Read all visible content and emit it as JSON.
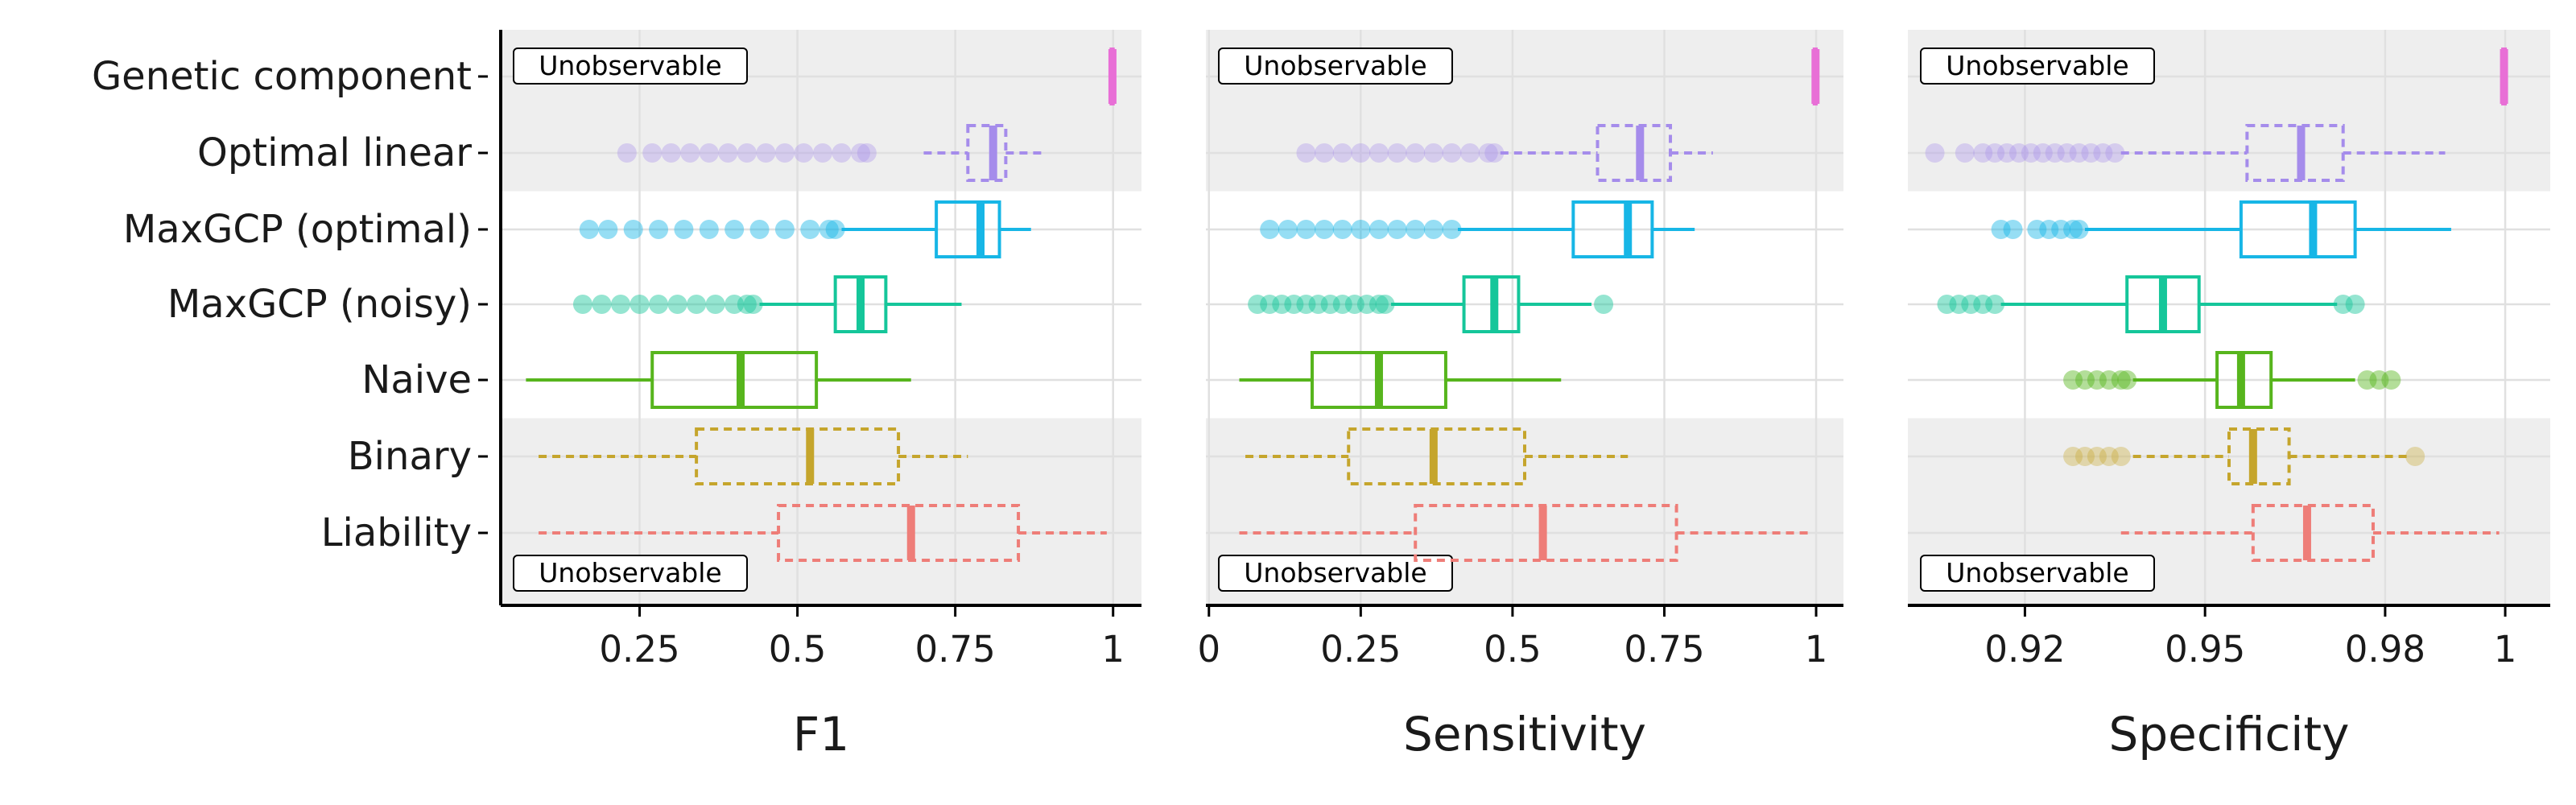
{
  "methods": [
    "Genetic component",
    "Optimal linear",
    "MaxGCP (optimal)",
    "MaxGCP (noisy)",
    "Naive",
    "Binary",
    "Liability"
  ],
  "unobservable_label": "Unobservable",
  "colors": {
    "Genetic component": "#e86fd6",
    "Optimal linear": "#a58ceb",
    "MaxGCP (optimal)": "#17b6e6",
    "MaxGCP (noisy)": "#15c69a",
    "Naive": "#57b51d",
    "Binary": "#c5a52c",
    "Liability": "#ee7d78",
    "shade": "#eeeeee",
    "grid": "#e0e0e0"
  },
  "chart_data": [
    {
      "type": "box",
      "xlabel": "F1",
      "xlim": [
        0.03,
        1.045
      ],
      "ticks": [
        0.25,
        0.5,
        0.75,
        1
      ],
      "tick_labels": [
        "0.25",
        "0.5",
        "0.75",
        "1"
      ],
      "unobservable_rows": [
        "Genetic component",
        "Optimal linear",
        "Binary",
        "Liability"
      ],
      "series": [
        {
          "name": "Genetic component",
          "whisker_low": 0.997,
          "q1": 0.997,
          "median": 0.999,
          "q3": 1.0,
          "whisker_high": 1.0,
          "outliers": []
        },
        {
          "name": "Optimal linear",
          "whisker_low": 0.7,
          "q1": 0.77,
          "median": 0.81,
          "q3": 0.83,
          "whisker_high": 0.89,
          "outliers": [
            0.23,
            0.27,
            0.3,
            0.33,
            0.36,
            0.39,
            0.42,
            0.45,
            0.48,
            0.51,
            0.54,
            0.57,
            0.6,
            0.61
          ]
        },
        {
          "name": "MaxGCP (optimal)",
          "whisker_low": 0.57,
          "q1": 0.72,
          "median": 0.79,
          "q3": 0.82,
          "whisker_high": 0.87,
          "outliers": [
            0.17,
            0.2,
            0.24,
            0.28,
            0.32,
            0.36,
            0.4,
            0.44,
            0.48,
            0.52,
            0.55,
            0.56
          ]
        },
        {
          "name": "MaxGCP (noisy)",
          "whisker_low": 0.44,
          "q1": 0.56,
          "median": 0.6,
          "q3": 0.64,
          "whisker_high": 0.76,
          "outliers": [
            0.16,
            0.19,
            0.22,
            0.25,
            0.28,
            0.31,
            0.34,
            0.37,
            0.4,
            0.42,
            0.43
          ]
        },
        {
          "name": "Naive",
          "whisker_low": 0.07,
          "q1": 0.27,
          "median": 0.41,
          "q3": 0.53,
          "whisker_high": 0.68,
          "outliers": []
        },
        {
          "name": "Binary",
          "whisker_low": 0.09,
          "q1": 0.34,
          "median": 0.52,
          "q3": 0.66,
          "whisker_high": 0.77,
          "outliers": []
        },
        {
          "name": "Liability",
          "whisker_low": 0.09,
          "q1": 0.47,
          "median": 0.68,
          "q3": 0.85,
          "whisker_high": 0.99,
          "outliers": []
        }
      ]
    },
    {
      "type": "box",
      "xlabel": "Sensitivity",
      "xlim": [
        -0.005,
        1.045
      ],
      "ticks": [
        0,
        0.25,
        0.5,
        0.75,
        1
      ],
      "tick_labels": [
        "0",
        "0.25",
        "0.5",
        "0.75",
        "1"
      ],
      "unobservable_rows": [
        "Genetic component",
        "Optimal linear",
        "Binary",
        "Liability"
      ],
      "series": [
        {
          "name": "Genetic component",
          "whisker_low": 0.997,
          "q1": 0.997,
          "median": 0.999,
          "q3": 1.0,
          "whisker_high": 1.0,
          "outliers": []
        },
        {
          "name": "Optimal linear",
          "whisker_low": 0.48,
          "q1": 0.64,
          "median": 0.71,
          "q3": 0.76,
          "whisker_high": 0.83,
          "outliers": [
            0.16,
            0.19,
            0.22,
            0.25,
            0.28,
            0.31,
            0.34,
            0.37,
            0.4,
            0.43,
            0.46,
            0.47
          ]
        },
        {
          "name": "MaxGCP (optimal)",
          "whisker_low": 0.41,
          "q1": 0.6,
          "median": 0.69,
          "q3": 0.73,
          "whisker_high": 0.8,
          "outliers": [
            0.1,
            0.13,
            0.16,
            0.19,
            0.22,
            0.25,
            0.28,
            0.31,
            0.34,
            0.37,
            0.4
          ]
        },
        {
          "name": "MaxGCP (noisy)",
          "whisker_low": 0.3,
          "q1": 0.42,
          "median": 0.47,
          "q3": 0.51,
          "whisker_high": 0.63,
          "outliers": [
            0.08,
            0.1,
            0.12,
            0.14,
            0.16,
            0.18,
            0.2,
            0.22,
            0.24,
            0.26,
            0.28,
            0.29,
            0.65
          ]
        },
        {
          "name": "Naive",
          "whisker_low": 0.05,
          "q1": 0.17,
          "median": 0.28,
          "q3": 0.39,
          "whisker_high": 0.58,
          "outliers": []
        },
        {
          "name": "Binary",
          "whisker_low": 0.06,
          "q1": 0.23,
          "median": 0.37,
          "q3": 0.52,
          "whisker_high": 0.69,
          "outliers": []
        },
        {
          "name": "Liability",
          "whisker_low": 0.05,
          "q1": 0.34,
          "median": 0.55,
          "q3": 0.77,
          "whisker_high": 0.99,
          "outliers": []
        }
      ]
    },
    {
      "type": "box",
      "xlabel": "Specificity",
      "xlim": [
        0.9005,
        1.0075
      ],
      "ticks": [
        0.92,
        0.95,
        0.98,
        1
      ],
      "tick_labels": [
        "0.92",
        "0.95",
        "0.98",
        "1"
      ],
      "unobservable_rows": [
        "Genetic component",
        "Optimal linear",
        "Binary",
        "Liability"
      ],
      "series": [
        {
          "name": "Genetic component",
          "whisker_low": 0.9996,
          "q1": 0.9996,
          "median": 0.9998,
          "q3": 1.0,
          "whisker_high": 1.0,
          "outliers": []
        },
        {
          "name": "Optimal linear",
          "whisker_low": 0.936,
          "q1": 0.957,
          "median": 0.966,
          "q3": 0.973,
          "whisker_high": 0.99,
          "outliers": [
            0.905,
            0.91,
            0.913,
            0.915,
            0.917,
            0.919,
            0.921,
            0.923,
            0.925,
            0.927,
            0.929,
            0.931,
            0.933,
            0.935
          ]
        },
        {
          "name": "MaxGCP (optimal)",
          "whisker_low": 0.93,
          "q1": 0.956,
          "median": 0.968,
          "q3": 0.975,
          "whisker_high": 0.991,
          "outliers": [
            0.916,
            0.918,
            0.922,
            0.924,
            0.926,
            0.928,
            0.929
          ]
        },
        {
          "name": "MaxGCP (noisy)",
          "whisker_low": 0.916,
          "q1": 0.937,
          "median": 0.943,
          "q3": 0.949,
          "whisker_high": 0.972,
          "outliers": [
            0.907,
            0.909,
            0.911,
            0.913,
            0.915,
            0.973,
            0.975
          ]
        },
        {
          "name": "Naive",
          "whisker_low": 0.938,
          "q1": 0.952,
          "median": 0.956,
          "q3": 0.961,
          "whisker_high": 0.975,
          "outliers": [
            0.928,
            0.93,
            0.932,
            0.934,
            0.936,
            0.937,
            0.977,
            0.979,
            0.981
          ]
        },
        {
          "name": "Binary",
          "whisker_low": 0.938,
          "q1": 0.954,
          "median": 0.958,
          "q3": 0.964,
          "whisker_high": 0.984,
          "outliers": [
            0.928,
            0.93,
            0.932,
            0.934,
            0.936,
            0.985
          ]
        },
        {
          "name": "Liability",
          "whisker_low": 0.936,
          "q1": 0.958,
          "median": 0.967,
          "q3": 0.978,
          "whisker_high": 0.999,
          "outliers": []
        }
      ]
    }
  ]
}
